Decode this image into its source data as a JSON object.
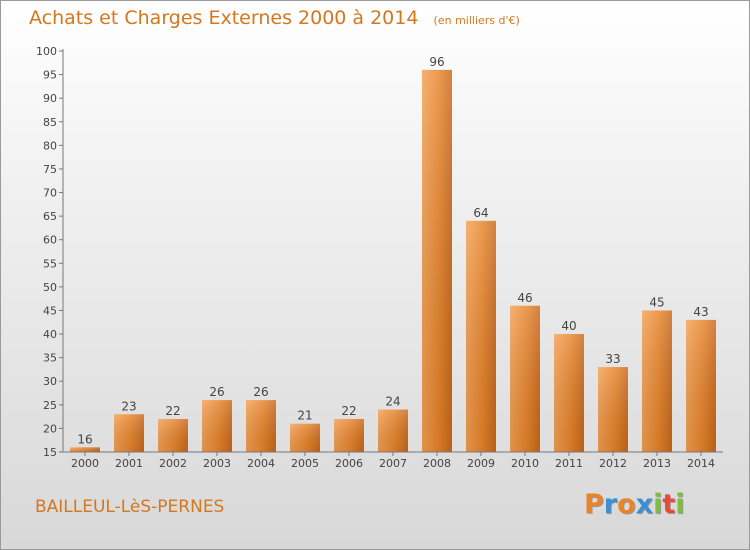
{
  "chart_data": {
    "type": "bar",
    "title": "Achats et Charges Externes 2000 à 2014",
    "subtitle": "(en milliers d'€)",
    "categories": [
      "2000",
      "2001",
      "2002",
      "2003",
      "2004",
      "2005",
      "2006",
      "2007",
      "2008",
      "2009",
      "2010",
      "2011",
      "2012",
      "2013",
      "2014"
    ],
    "values": [
      16,
      23,
      22,
      26,
      26,
      21,
      22,
      24,
      96,
      64,
      46,
      40,
      33,
      45,
      43
    ],
    "yticks": [
      "15",
      "20",
      "25",
      "30",
      "35",
      "40",
      "45",
      "50",
      "55",
      "60",
      "65",
      "70",
      "75",
      "80",
      "85",
      "90",
      "95",
      "100"
    ],
    "ylim": [
      15,
      100
    ],
    "grid": false,
    "bar_color": "#e8842a",
    "bar_highlight": "#f7aa57",
    "axis_color": "#555555"
  },
  "footer": {
    "commune": "BAILLEUL-LèS-PERNES",
    "brand": "Proxiti",
    "brand_letters": [
      {
        "ch": "P",
        "color": "#e8842a"
      },
      {
        "ch": "r",
        "color": "#3a8fd6"
      },
      {
        "ch": "o",
        "color": "#e8842a"
      },
      {
        "ch": "x",
        "color": "#3a8fd6"
      },
      {
        "ch": "i",
        "color": "#7cbf3a"
      },
      {
        "ch": "t",
        "color": "#e84b3a"
      },
      {
        "ch": "i",
        "color": "#7cbf3a"
      }
    ]
  }
}
